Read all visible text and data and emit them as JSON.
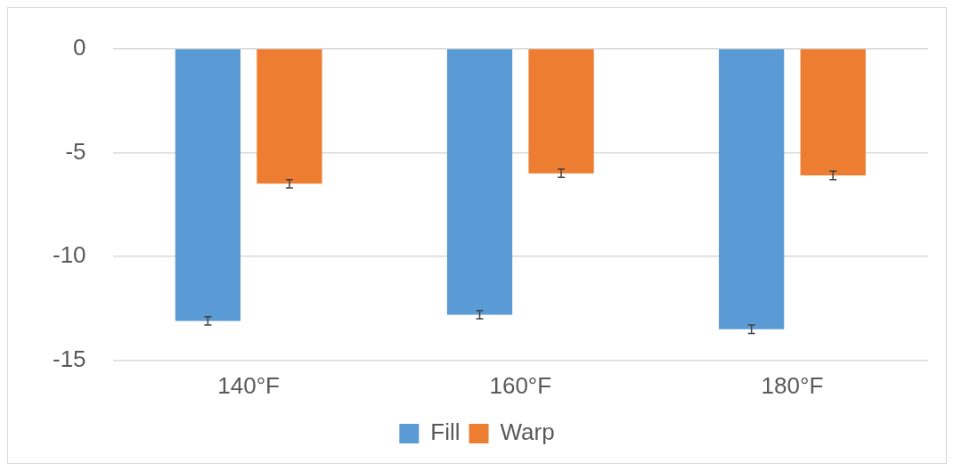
{
  "chart_data": {
    "type": "bar",
    "categories": [
      "140°F",
      "160°F",
      "180°F"
    ],
    "series": [
      {
        "name": "Fill",
        "color": "#5b9bd5",
        "values": [
          -13.1,
          -12.8,
          -13.5
        ],
        "errors": [
          0.2,
          0.2,
          0.2
        ]
      },
      {
        "name": "Warp",
        "color": "#ed7d31",
        "values": [
          -6.5,
          -6.0,
          -6.1
        ],
        "errors": [
          0.2,
          0.2,
          0.2
        ]
      }
    ],
    "ylim": [
      -15,
      0
    ],
    "yticks": [
      -15,
      -10,
      -5,
      0
    ],
    "grid": "y",
    "legend": "bottom"
  }
}
